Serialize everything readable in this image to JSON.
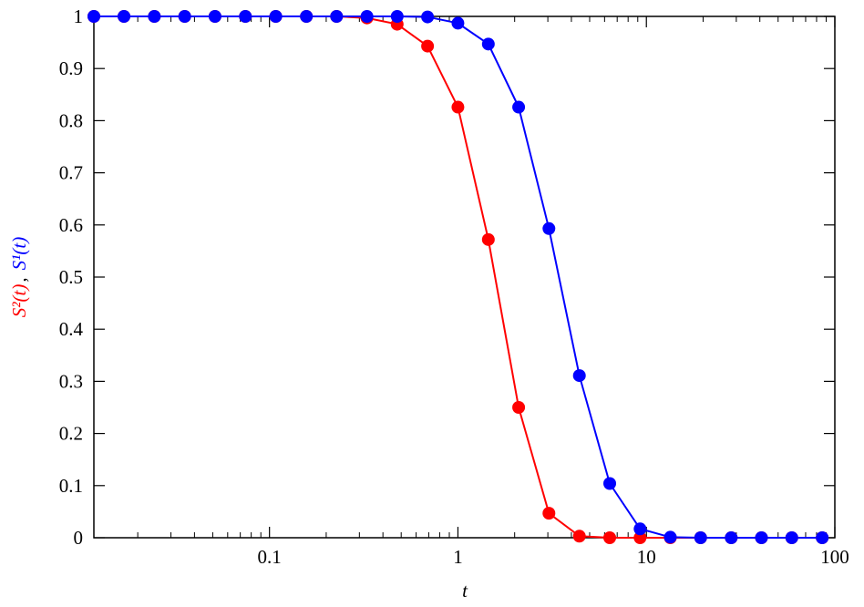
{
  "chart_data": {
    "type": "line",
    "xlabel": "t",
    "ylabel": [
      {
        "text": "S²(t)",
        "color": "#ff0000"
      },
      {
        "text": ",",
        "color": "#000000"
      },
      {
        "text": "S¹(t)",
        "color": "#0000ff"
      }
    ],
    "xscale": "log",
    "x": [
      0.0117,
      0.0169,
      0.0245,
      0.0355,
      0.0514,
      0.0745,
      0.108,
      0.157,
      0.227,
      0.329,
      0.476,
      0.69,
      1.0,
      1.45,
      2.1,
      3.04,
      4.41,
      6.39,
      9.26,
      13.4,
      19.4,
      28.2,
      40.8,
      59.1,
      85.7
    ],
    "series": [
      {
        "color": "#ff0000",
        "values": [
          1,
          1,
          1,
          1,
          1,
          1,
          1,
          1,
          1,
          0.997,
          0.985,
          0.943,
          0.826,
          0.572,
          0.25,
          0.047,
          0.003,
          0,
          0,
          0,
          0,
          0,
          0,
          0,
          0
        ]
      },
      {
        "color": "#0000ff",
        "values": [
          1,
          1,
          1,
          1,
          1,
          1,
          1,
          1,
          1,
          1,
          1,
          0.999,
          0.987,
          0.947,
          0.826,
          0.593,
          0.311,
          0.104,
          0.017,
          0.001,
          0,
          0,
          0,
          0,
          0
        ]
      }
    ],
    "xlim": [
      0.0117,
      100
    ],
    "ylim": [
      0,
      1
    ],
    "xticks": [
      0.1,
      1,
      10,
      100
    ],
    "xminorticks": [
      0.02,
      0.03,
      0.04,
      0.05,
      0.06,
      0.07,
      0.08,
      0.09,
      0.2,
      0.3,
      0.4,
      0.5,
      0.6,
      0.7,
      0.8,
      0.9,
      2,
      3,
      4,
      5,
      6,
      7,
      8,
      9,
      20,
      30,
      40,
      50,
      60,
      70,
      80,
      90
    ],
    "yticks": [
      0,
      0.1,
      0.2,
      0.3,
      0.4,
      0.5,
      0.6,
      0.7,
      0.8,
      0.9,
      1
    ]
  }
}
